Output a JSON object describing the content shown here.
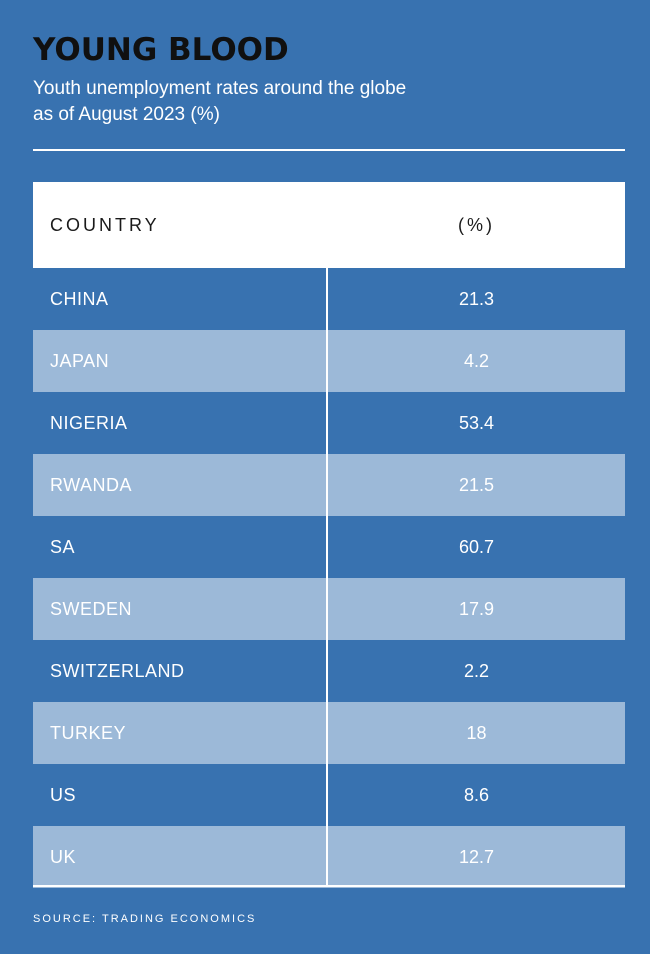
{
  "colors": {
    "background": "#3872b0",
    "alt_row": "#9cb9d8",
    "header_bg": "#ffffff",
    "title": "#101010"
  },
  "header": {
    "title": "YOUNG BLOOD",
    "subtitle": "Youth unemployment rates around the globe as of August 2023 (%)"
  },
  "chart_data": {
    "type": "table",
    "title": "YOUNG BLOOD",
    "subtitle": "Youth unemployment rates around the globe as of August 2023 (%)",
    "columns": [
      "COUNTRY",
      "(%)"
    ],
    "rows": [
      {
        "country": "CHINA",
        "value": "21.3"
      },
      {
        "country": "JAPAN",
        "value": "4.2"
      },
      {
        "country": "NIGERIA",
        "value": "53.4"
      },
      {
        "country": "RWANDA",
        "value": "21.5"
      },
      {
        "country": "SA",
        "value": "60.7"
      },
      {
        "country": "SWEDEN",
        "value": "17.9"
      },
      {
        "country": "SWITZERLAND",
        "value": "2.2"
      },
      {
        "country": "TURKEY",
        "value": "18"
      },
      {
        "country": "US",
        "value": "8.6"
      },
      {
        "country": "UK",
        "value": "12.7"
      }
    ]
  },
  "footer": {
    "source": "SOURCE: TRADING ECONOMICS"
  }
}
